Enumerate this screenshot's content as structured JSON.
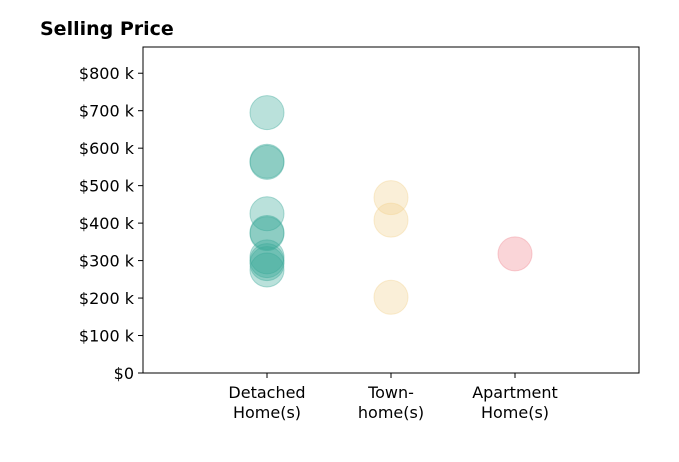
{
  "chart_data": {
    "type": "scatter",
    "title": "Selling Price",
    "xlabel": "",
    "ylabel": "",
    "categories": [
      [
        "Detached",
        "Home(s)"
      ],
      [
        "Town-",
        "home(s)"
      ],
      [
        "Apartment",
        "Home(s)"
      ]
    ],
    "ylim": [
      0,
      870000
    ],
    "yticks": [
      {
        "value": 0,
        "label": "$0"
      },
      {
        "value": 100000,
        "label": "$100 k"
      },
      {
        "value": 200000,
        "label": "$200 k"
      },
      {
        "value": 300000,
        "label": "$300 k"
      },
      {
        "value": 400000,
        "label": "$400 k"
      },
      {
        "value": 500000,
        "label": "$500 k"
      },
      {
        "value": 600000,
        "label": "$600 k"
      },
      {
        "value": 700000,
        "label": "$700 k"
      },
      {
        "value": 800000,
        "label": "$800 k"
      }
    ],
    "grid": false,
    "series": [
      {
        "category_index": 0,
        "color": "#3aa898",
        "values": [
          695000,
          565000,
          562000,
          425000,
          375000,
          372000,
          310000,
          300000,
          292000,
          275000
        ]
      },
      {
        "category_index": 1,
        "color": "#f2d28e",
        "values": [
          468000,
          408000,
          202000
        ]
      },
      {
        "category_index": 2,
        "color": "#f08890",
        "values": [
          318000
        ]
      }
    ]
  }
}
